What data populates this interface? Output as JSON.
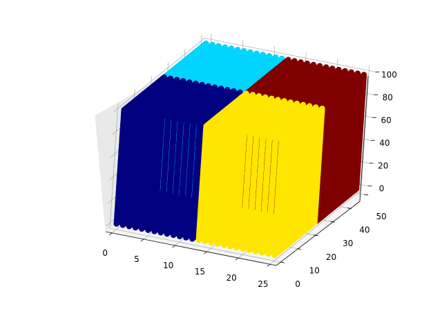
{
  "chart_data": {
    "type": "scatter",
    "projection": "3d",
    "title": "",
    "xlabel": "",
    "ylabel": "",
    "zlabel": "",
    "xlim": [
      -1,
      26
    ],
    "ylim": [
      -2.5,
      52
    ],
    "zlim": [
      -5,
      105
    ],
    "xticks": [
      0,
      5,
      10,
      15,
      20,
      25
    ],
    "yticks": [
      0,
      10,
      20,
      30,
      40,
      50
    ],
    "zticks": [
      0,
      20,
      40,
      60,
      80,
      100
    ],
    "xtick_labels": [
      "0",
      "5",
      "10",
      "15",
      "20",
      "25"
    ],
    "ytick_labels": [
      "0",
      "10",
      "20",
      "30",
      "40",
      "50"
    ],
    "ztick_labels": [
      "0",
      "20",
      "40",
      "60",
      "80",
      "100"
    ],
    "grid": true,
    "colormap": "jet",
    "series": [
      {
        "color": "#000080",
        "x_range": [
          0,
          12
        ],
        "y_range": [
          0,
          24
        ],
        "z_range": [
          0,
          100
        ],
        "color_value": 0.0
      },
      {
        "color": "#00d4ff",
        "x_range": [
          0,
          12
        ],
        "y_range": [
          25,
          49
        ],
        "z_range": [
          0,
          100
        ],
        "color_value": 0.33
      },
      {
        "color": "#ffe600",
        "x_range": [
          13,
          25
        ],
        "y_range": [
          0,
          24
        ],
        "z_range": [
          0,
          100
        ],
        "color_value": 0.67
      },
      {
        "color": "#800000",
        "x_range": [
          13,
          25
        ],
        "y_range": [
          25,
          49
        ],
        "z_range": [
          0,
          100
        ],
        "color_value": 1.0
      }
    ]
  }
}
